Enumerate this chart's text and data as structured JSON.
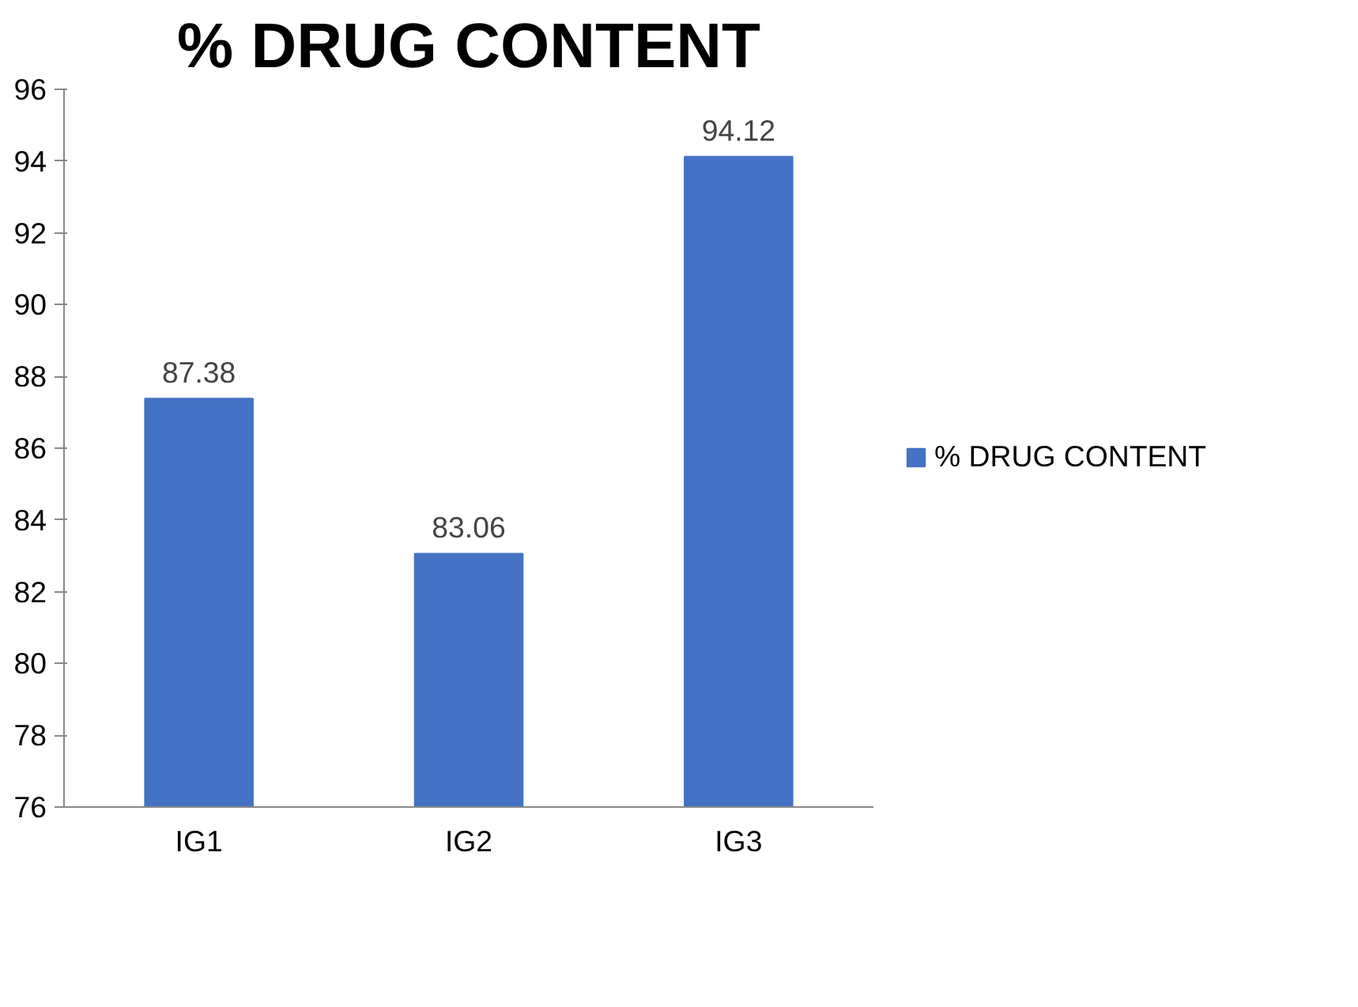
{
  "chart_data": {
    "type": "bar",
    "title": "% DRUG CONTENT",
    "categories": [
      "IG1",
      "IG2",
      "IG3"
    ],
    "series": [
      {
        "name": "% DRUG CONTENT",
        "color": "#4472c4",
        "values": [
          87.38,
          83.06,
          94.12
        ]
      }
    ],
    "ylim": [
      76,
      96
    ],
    "yticks": [
      76,
      78,
      80,
      82,
      84,
      86,
      88,
      90,
      92,
      94,
      96
    ],
    "data_labels": true,
    "grid": false,
    "legend": "right"
  }
}
